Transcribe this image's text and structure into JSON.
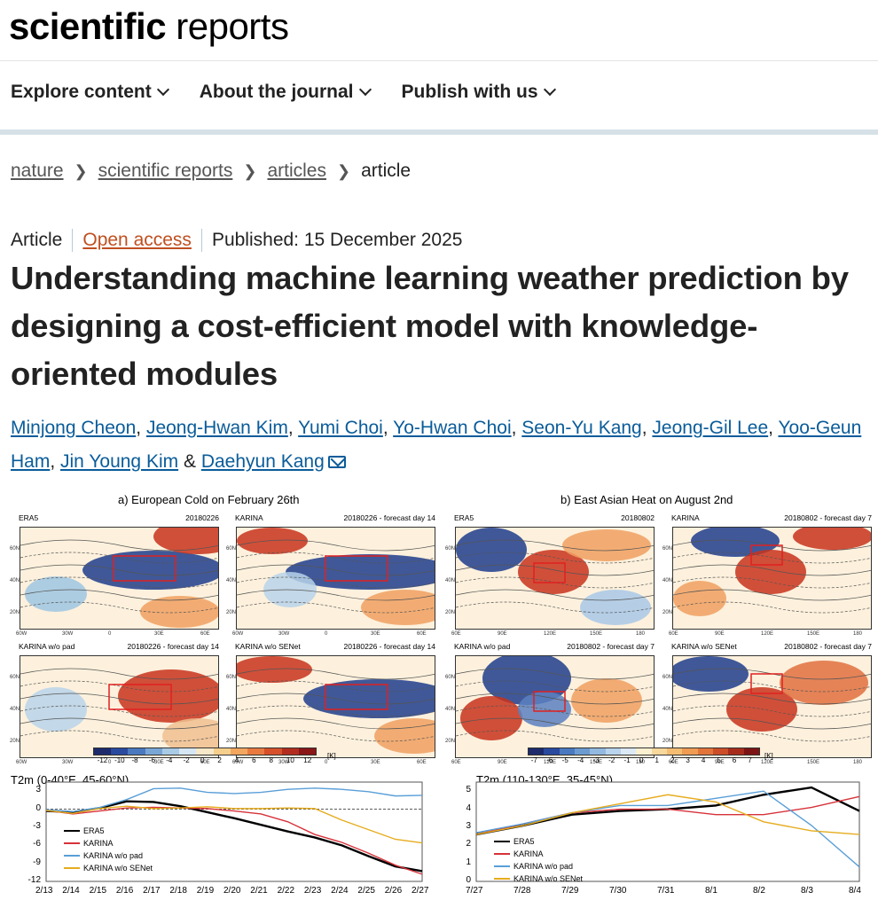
{
  "logo": {
    "bold": "scientific",
    "light": " reports"
  },
  "nav": [
    {
      "label": "Explore content"
    },
    {
      "label": "About the journal"
    },
    {
      "label": "Publish with us"
    }
  ],
  "breadcrumb": {
    "items": [
      "nature",
      "scientific reports",
      "articles"
    ],
    "current": "article"
  },
  "meta": {
    "type": "Article",
    "access": "Open access",
    "published": "Published: 15 December 2025"
  },
  "title": "Understanding machine learning weather prediction by designing a cost-efficient model with knowledge-oriented modules",
  "authors": [
    "Minjong Cheon",
    "Jeong-Hwan Kim",
    "Yumi Choi",
    "Yo-Hwan Choi",
    "Seon-Yu Kang",
    "Jeong-Gil Lee",
    "Yoo-Geun Ham",
    "Jin Young Kim",
    "Daehyun Kang"
  ],
  "author_and": "&",
  "figure": {
    "panel_a_title": "a) European Cold on February 26th",
    "panel_b_title": "b) East Asian Heat on August 2nd",
    "maps_a": [
      {
        "label": "ERA5",
        "date": "20180226"
      },
      {
        "label": "KARINA",
        "date": "20180226 - forecast day 14"
      },
      {
        "label": "KARINA w/o pad",
        "date": "20180226 - forecast day 14"
      },
      {
        "label": "KARINA w/o SENet",
        "date": "20180226 - forecast day 14"
      }
    ],
    "maps_b": [
      {
        "label": "ERA5",
        "date": "20180802"
      },
      {
        "label": "KARINA",
        "date": "20180802 - forecast day 7"
      },
      {
        "label": "KARINA w/o pad",
        "date": "20180802 - forecast day 7"
      },
      {
        "label": "KARINA w/o SENet",
        "date": "20180802 - forecast day 7"
      }
    ],
    "map_a_lat": [
      "60N",
      "40N",
      "20N"
    ],
    "map_a_lon": [
      "60W",
      "30W",
      "0",
      "30E",
      "60E"
    ],
    "map_b_lat": [
      "60N",
      "40N",
      "20N"
    ],
    "map_b_lon": [
      "60E",
      "90E",
      "120E",
      "150E",
      "180"
    ],
    "cbar_a": {
      "ticks": [
        "-12",
        "-10",
        "-8",
        "-6",
        "-4",
        "-2",
        "0",
        "2",
        "4",
        "6",
        "8",
        "10",
        "12"
      ],
      "unit": "[K]"
    },
    "cbar_b": {
      "ticks": [
        "-7",
        "-6",
        "-5",
        "-4",
        "-3",
        "-2",
        "-1",
        "0",
        "1",
        "2",
        "3",
        "4",
        "5",
        "6",
        "7"
      ],
      "unit": "[K]"
    }
  },
  "colors": {
    "era5": "#000000",
    "karina": "#d7323a",
    "nopad": "#5a9fd8",
    "nosenet": "#e6ac1e",
    "cold": "#1e3d8c",
    "warm": "#c8331c",
    "link": "#0a5c9a"
  },
  "chart_data": [
    {
      "type": "line",
      "title": "T2m (0-40°E, 45-60°N)",
      "categories": [
        "2/13",
        "2/14",
        "2/15",
        "2/16",
        "2/17",
        "2/18",
        "2/19",
        "2/20",
        "2/21",
        "2/22",
        "2/23",
        "2/24",
        "2/25",
        "2/26",
        "2/27"
      ],
      "ylim": [
        -12,
        4.5
      ],
      "yticks": [
        "3",
        "0",
        "-3",
        "-6",
        "-9",
        "-12"
      ],
      "series": [
        {
          "name": "ERA5",
          "values": [
            -0.3,
            -0.5,
            0.2,
            1.3,
            1.2,
            0.5,
            -0.5,
            -1.5,
            -2.6,
            -3.7,
            -4.7,
            -6.0,
            -7.8,
            -9.5,
            -10.3
          ]
        },
        {
          "name": "KARINA",
          "values": [
            -0.2,
            -0.8,
            -0.3,
            0.2,
            0.3,
            0.2,
            0.1,
            -0.3,
            -0.8,
            -2.1,
            -4.2,
            -5.5,
            -7.3,
            -9.3,
            -10.8
          ]
        },
        {
          "name": "KARINA w/o pad",
          "values": [
            -0.1,
            -0.4,
            0.3,
            1.6,
            3.4,
            3.5,
            2.8,
            2.6,
            2.8,
            3.3,
            3.5,
            3.3,
            2.9,
            2.2,
            2.3
          ]
        },
        {
          "name": "KARINA w/o SENet",
          "values": [
            -0.2,
            -0.7,
            0.1,
            0.5,
            0.1,
            0.2,
            0.4,
            0.1,
            0.1,
            0.2,
            0.1,
            -1.8,
            -3.4,
            -5.0,
            -5.6
          ]
        }
      ]
    },
    {
      "type": "line",
      "title": "T2m (110-130°E, 35-45°N)",
      "categories": [
        "7/27",
        "7/28",
        "7/29",
        "7/30",
        "7/31",
        "8/1",
        "8/2",
        "8/3",
        "8/4"
      ],
      "ylim": [
        0,
        5.5
      ],
      "yticks": [
        "5",
        "4",
        "3",
        "2",
        "1",
        "0"
      ],
      "series": [
        {
          "name": "ERA5",
          "values": [
            2.6,
            3.1,
            3.7,
            3.9,
            4.0,
            4.2,
            4.8,
            5.2,
            3.9
          ]
        },
        {
          "name": "KARINA",
          "values": [
            2.6,
            3.2,
            3.8,
            4.0,
            4.0,
            3.7,
            3.7,
            4.1,
            4.7
          ]
        },
        {
          "name": "KARINA w/o pad",
          "values": [
            2.7,
            3.2,
            3.8,
            4.2,
            4.2,
            4.6,
            5.0,
            3.1,
            0.8
          ]
        },
        {
          "name": "KARINA w/o SENet",
          "values": [
            2.6,
            3.1,
            3.8,
            4.3,
            4.8,
            4.4,
            3.3,
            2.8,
            2.6
          ]
        }
      ]
    }
  ]
}
